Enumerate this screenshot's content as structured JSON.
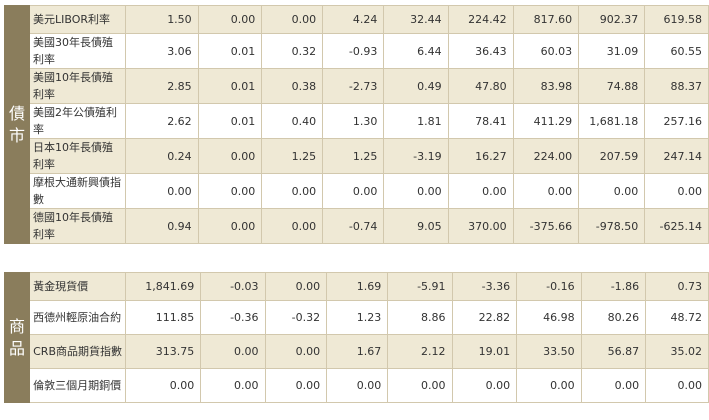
{
  "bonds": {
    "label_chars": [
      "債",
      "市"
    ],
    "rows": [
      {
        "name": "美元LIBOR利率",
        "values": [
          "1.50",
          "0.00",
          "0.00",
          "4.24",
          "32.44",
          "224.42",
          "817.60",
          "902.37",
          "619.58"
        ]
      },
      {
        "name": "美國30年長債殖利率",
        "values": [
          "3.06",
          "0.01",
          "0.32",
          "-0.93",
          "6.44",
          "36.43",
          "60.03",
          "31.09",
          "60.55"
        ]
      },
      {
        "name": "美國10年長債殖利率",
        "values": [
          "2.85",
          "0.01",
          "0.38",
          "-2.73",
          "0.49",
          "47.80",
          "83.98",
          "74.88",
          "88.37"
        ]
      },
      {
        "name": "美國2年公債殖利率",
        "values": [
          "2.62",
          "0.01",
          "0.40",
          "1.30",
          "1.81",
          "78.41",
          "411.29",
          "1,681.18",
          "257.16"
        ]
      },
      {
        "name": "日本10年長債殖利率",
        "values": [
          "0.24",
          "0.00",
          "1.25",
          "1.25",
          "-3.19",
          "16.27",
          "224.00",
          "207.59",
          "247.14"
        ]
      },
      {
        "name": "摩根大通新興債指數",
        "values": [
          "0.00",
          "0.00",
          "0.00",
          "0.00",
          "0.00",
          "0.00",
          "0.00",
          "0.00",
          "0.00"
        ]
      },
      {
        "name": "德國10年長債殖利率",
        "values": [
          "0.94",
          "0.00",
          "0.00",
          "-0.74",
          "9.05",
          "370.00",
          "-375.66",
          "-978.50",
          "-625.14"
        ]
      }
    ]
  },
  "commodities": {
    "label_chars": [
      "商",
      "品"
    ],
    "rows": [
      {
        "name": "黃金現貨價",
        "values": [
          "1,841.69",
          "-0.03",
          "0.00",
          "1.69",
          "-5.91",
          "-3.36",
          "-0.16",
          "-1.86",
          "0.73"
        ]
      },
      {
        "name": "西德州輕原油合約",
        "values": [
          "111.85",
          "-0.36",
          "-0.32",
          "1.23",
          "8.86",
          "22.82",
          "46.98",
          "80.26",
          "48.72"
        ]
      },
      {
        "name": "CRB商品期貨指數",
        "values": [
          "313.75",
          "0.00",
          "0.00",
          "1.67",
          "2.12",
          "19.01",
          "33.50",
          "56.87",
          "35.02"
        ]
      },
      {
        "name": "倫敦三個月期銅價",
        "values": [
          "0.00",
          "0.00",
          "0.00",
          "0.00",
          "0.00",
          "0.00",
          "0.00",
          "0.00",
          "0.00"
        ]
      }
    ]
  },
  "colors": {
    "category_bg": "#8a7d5c",
    "row_highlight": "#efe9d5",
    "border": "#d2c8ad"
  }
}
